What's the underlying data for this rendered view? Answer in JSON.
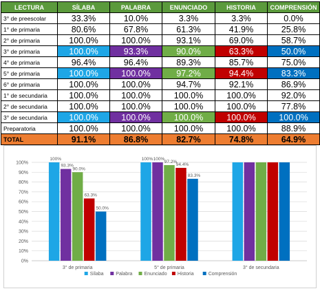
{
  "table": {
    "headers": [
      "LECTURA",
      "SÍLABA",
      "PALABRA",
      "ENUNCIADO",
      "HISTORIA",
      "COMPRENSIÓN"
    ],
    "rows": [
      {
        "label": "3° de preescolar",
        "values": [
          "33.3%",
          "10.0%",
          "3.3%",
          "3.3%",
          "0.0%"
        ],
        "highlight": false
      },
      {
        "label": "1° de primaria",
        "values": [
          "80.6%",
          "67.8%",
          "61.3%",
          "41.9%",
          "25.8%"
        ],
        "highlight": false
      },
      {
        "label": "2° de primaria",
        "values": [
          "100.0%",
          "100.0%",
          "93.1%",
          "69.0%",
          "58.7%"
        ],
        "highlight": false
      },
      {
        "label": "3° de primaria",
        "values": [
          "100.0%",
          "93.3%",
          "90.0%",
          "63.3%",
          "50.0%"
        ],
        "highlight": true
      },
      {
        "label": "4° de primaria",
        "values": [
          "96.4%",
          "96.4%",
          "89.3%",
          "85.7%",
          "75.0%"
        ],
        "highlight": false
      },
      {
        "label": "5° de primaria",
        "values": [
          "100.0%",
          "100.0%",
          "97.2%",
          "94.4%",
          "83.3%"
        ],
        "highlight": true
      },
      {
        "label": "6° de primaria",
        "values": [
          "100.0%",
          "100.0%",
          "94.7%",
          "92.1%",
          "86.9%"
        ],
        "highlight": false
      },
      {
        "label": "1° de secundaria",
        "values": [
          "100.0%",
          "100.0%",
          "100.0%",
          "100.0%",
          "92.0%"
        ],
        "highlight": false
      },
      {
        "label": "2° de secundaria",
        "values": [
          "100.0%",
          "100.0%",
          "100.0%",
          "100.0%",
          "77.8%"
        ],
        "highlight": false
      },
      {
        "label": "3° de secundaria",
        "values": [
          "100.0%",
          "100.0%",
          "100.0%",
          "100.0%",
          "100.0%"
        ],
        "highlight": true
      },
      {
        "label": "Preparatoria",
        "values": [
          "100.0%",
          "100.0%",
          "100.0%",
          "100.0%",
          "88.9%"
        ],
        "highlight": false
      }
    ],
    "total": {
      "label": "TOTAL",
      "values": [
        "91.1%",
        "86.8%",
        "82.7%",
        "74.8%",
        "64.9%"
      ]
    },
    "header_color": "#5b9a3c",
    "total_color": "#ed7d31"
  },
  "chart_data": {
    "type": "bar",
    "categories": [
      "3° de primaria",
      "5° de primaria",
      "3° de secundaria"
    ],
    "series": [
      {
        "name": "Sílaba",
        "color": "#1ea6e6",
        "values": [
          100,
          100,
          100
        ],
        "labels": [
          "100%",
          "100%",
          ""
        ]
      },
      {
        "name": "Palabra",
        "color": "#7030a0",
        "values": [
          93.3,
          100,
          100
        ],
        "labels": [
          "93.3%",
          "100%",
          ""
        ]
      },
      {
        "name": "Enunciado",
        "color": "#70ad47",
        "values": [
          90.0,
          97.2,
          100
        ],
        "labels": [
          "90.0%",
          "97.2%",
          ""
        ]
      },
      {
        "name": "Historia",
        "color": "#c00000",
        "values": [
          63.3,
          94.4,
          100
        ],
        "labels": [
          "63.3%",
          "94.4%",
          ""
        ]
      },
      {
        "name": "Comprensión",
        "color": "#0070c0",
        "values": [
          50.0,
          83.3,
          100
        ],
        "labels": [
          "50.0%",
          "83.3%",
          ""
        ]
      }
    ],
    "ylim": [
      0,
      100
    ],
    "yticks": [
      "0%",
      "10%",
      "20%",
      "30%",
      "40%",
      "50%",
      "60%",
      "70%",
      "80%",
      "90%",
      "100%"
    ],
    "grid": true,
    "legend_position": "bottom",
    "title": "",
    "xlabel": "",
    "ylabel": ""
  }
}
